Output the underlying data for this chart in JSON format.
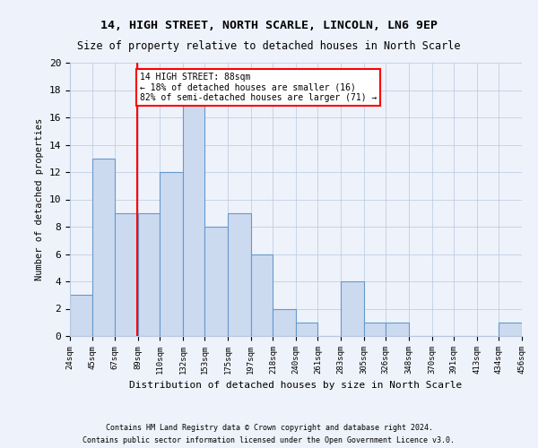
{
  "title1": "14, HIGH STREET, NORTH SCARLE, LINCOLN, LN6 9EP",
  "title2": "Size of property relative to detached houses in North Scarle",
  "xlabel": "Distribution of detached houses by size in North Scarle",
  "ylabel": "Number of detached properties",
  "bin_edges": [
    24,
    45,
    67,
    89,
    110,
    132,
    153,
    175,
    197,
    218,
    240,
    261,
    283,
    305,
    326,
    348,
    370,
    391,
    413,
    434,
    456
  ],
  "counts": [
    3,
    13,
    9,
    9,
    12,
    17,
    8,
    9,
    6,
    2,
    1,
    0,
    4,
    1,
    1,
    0,
    0,
    0,
    0,
    1
  ],
  "bar_color": "#ccdaf0",
  "bar_edge_color": "#6699cc",
  "subject_value": 88,
  "annotation_line1": "14 HIGH STREET: 88sqm",
  "annotation_line2": "← 18% of detached houses are smaller (16)",
  "annotation_line3": "82% of semi-detached houses are larger (71) →",
  "annotation_box_color": "white",
  "annotation_box_edge_color": "red",
  "vline_color": "red",
  "ylim": [
    0,
    20
  ],
  "yticks": [
    0,
    2,
    4,
    6,
    8,
    10,
    12,
    14,
    16,
    18,
    20
  ],
  "footnote1": "Contains HM Land Registry data © Crown copyright and database right 2024.",
  "footnote2": "Contains public sector information licensed under the Open Government Licence v3.0.",
  "background_color": "#eef2fa"
}
